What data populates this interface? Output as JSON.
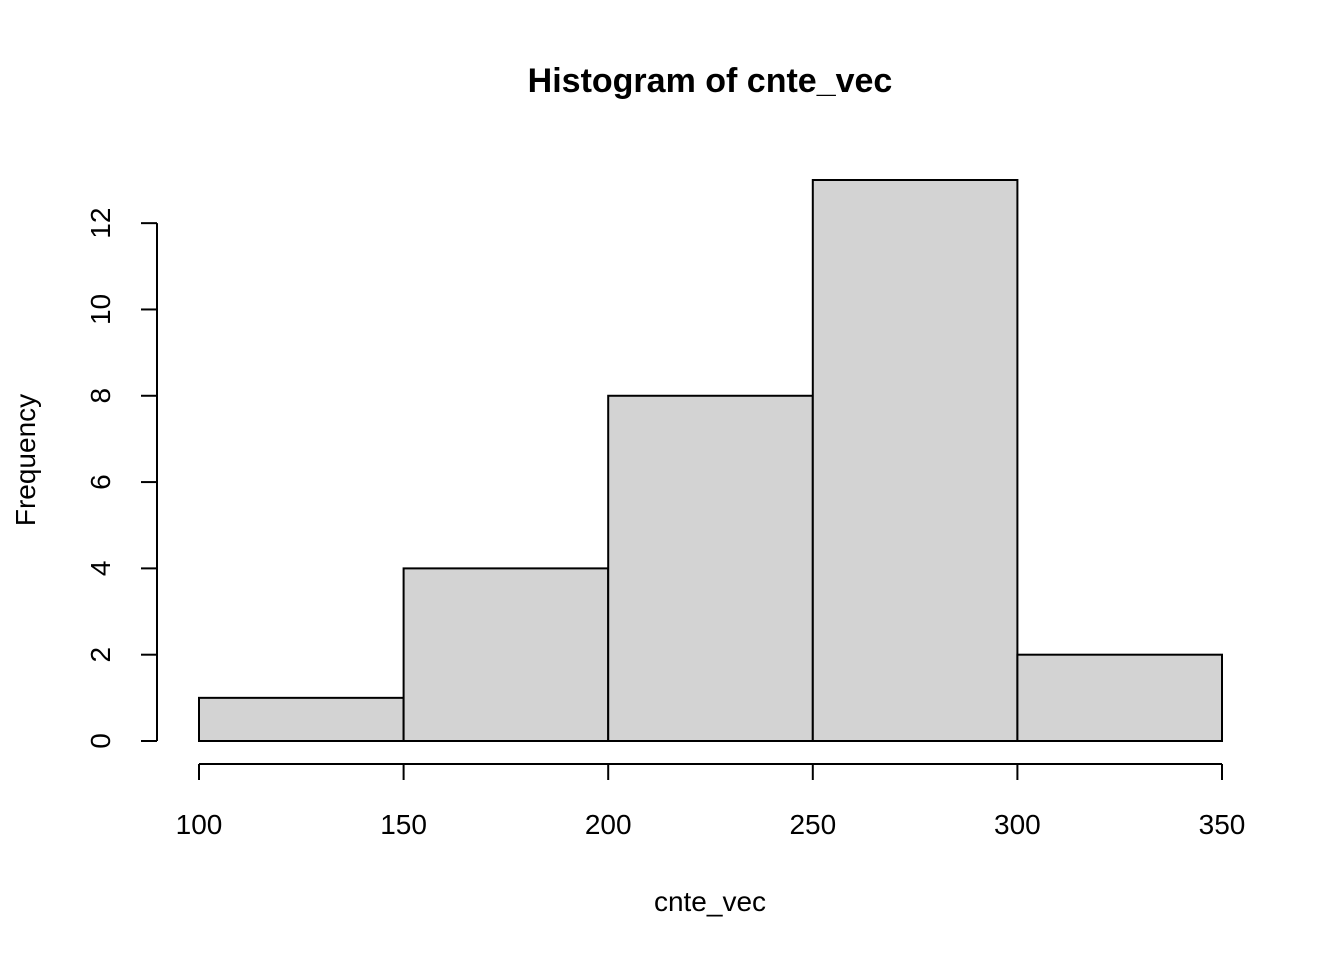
{
  "chart_data": {
    "type": "bar",
    "title": "Histogram of cnte_vec",
    "xlabel": "cnte_vec",
    "ylabel": "Frequency",
    "bins": [
      {
        "from": 100,
        "to": 150,
        "count": 1
      },
      {
        "from": 150,
        "to": 200,
        "count": 4
      },
      {
        "from": 200,
        "to": 250,
        "count": 8
      },
      {
        "from": 250,
        "to": 300,
        "count": 13
      },
      {
        "from": 300,
        "to": 350,
        "count": 2
      }
    ],
    "x_ticks": [
      100,
      150,
      200,
      250,
      300,
      350
    ],
    "y_ticks": [
      0,
      2,
      4,
      6,
      8,
      10,
      12
    ],
    "xlim": [
      100,
      350
    ],
    "ylim": [
      0,
      13
    ],
    "grid": false,
    "legend": "none",
    "colors": {
      "bar_fill": "#d3d3d3",
      "bar_stroke": "#000000"
    }
  }
}
